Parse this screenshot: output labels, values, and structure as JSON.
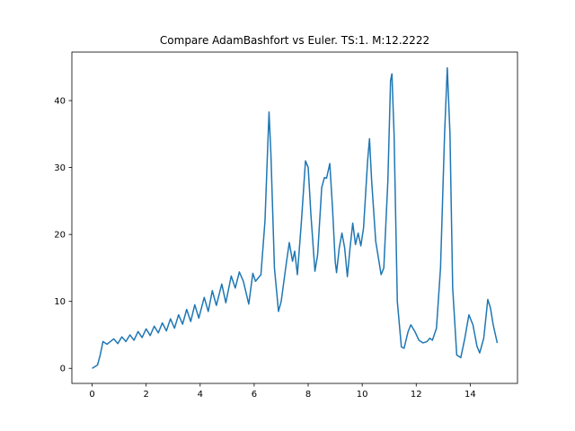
{
  "chart_data": {
    "type": "line",
    "title": "Compare AdamBashfort vs Euler. TS:1. M:12.2222",
    "x": [
      0,
      0.2,
      0.3,
      0.4,
      0.55,
      0.8,
      0.95,
      1.1,
      1.25,
      1.4,
      1.55,
      1.7,
      1.85,
      2.0,
      2.15,
      2.3,
      2.45,
      2.6,
      2.75,
      2.9,
      3.05,
      3.2,
      3.35,
      3.5,
      3.65,
      3.8,
      3.95,
      4.15,
      4.3,
      4.45,
      4.6,
      4.8,
      4.95,
      5.15,
      5.3,
      5.45,
      5.6,
      5.8,
      5.95,
      6.05,
      6.25,
      6.4,
      6.5,
      6.55,
      6.62,
      6.75,
      6.9,
      7.0,
      7.2,
      7.3,
      7.42,
      7.5,
      7.6,
      7.75,
      7.9,
      8.0,
      8.1,
      8.25,
      8.35,
      8.5,
      8.6,
      8.68,
      8.8,
      8.9,
      9.0,
      9.05,
      9.15,
      9.25,
      9.35,
      9.45,
      9.55,
      9.65,
      9.75,
      9.85,
      9.95,
      10.05,
      10.2,
      10.27,
      10.35,
      10.5,
      10.7,
      10.8,
      10.95,
      11.05,
      11.1,
      11.18,
      11.3,
      11.45,
      11.55,
      11.7,
      11.8,
      11.95,
      12.1,
      12.25,
      12.4,
      12.5,
      12.6,
      12.75,
      12.9,
      13.05,
      13.15,
      13.25,
      13.35,
      13.5,
      13.65,
      13.8,
      13.95,
      14.1,
      14.25,
      14.35,
      14.5,
      14.65,
      14.75,
      14.85,
      15.0
    ],
    "series": [
      {
        "color": "#1f77b4",
        "values": [
          0,
          0.5,
          2,
          4,
          3.6,
          4.4,
          3.7,
          4.7,
          4.0,
          5.0,
          4.2,
          5.5,
          4.6,
          5.9,
          4.9,
          6.3,
          5.3,
          6.8,
          5.6,
          7.4,
          6.0,
          8.0,
          6.6,
          8.8,
          7.0,
          9.5,
          7.5,
          10.6,
          8.5,
          11.6,
          9.4,
          12.6,
          9.8,
          13.8,
          12.0,
          14.4,
          13.0,
          9.6,
          14.2,
          13.0,
          14,
          22,
          33,
          38.3,
          32,
          15,
          8.5,
          10,
          16,
          18.8,
          16,
          17.5,
          14,
          22,
          31,
          30,
          23,
          14.5,
          17,
          27,
          28.5,
          28.4,
          30.6,
          24,
          16,
          14.3,
          18,
          20.2,
          18,
          13.7,
          18,
          21.7,
          18.5,
          20.2,
          18.3,
          21,
          31,
          34.3,
          28,
          19,
          14,
          15,
          28,
          43,
          44,
          35,
          10,
          3.2,
          3.0,
          5.5,
          6.5,
          5.5,
          4.2,
          3.8,
          4.0,
          4.5,
          4.2,
          6,
          15,
          35,
          44.9,
          35,
          12,
          2,
          1.6,
          4.5,
          8,
          6.5,
          3.3,
          2.3,
          4.5,
          10.3,
          9,
          6.5,
          3.8
        ]
      }
    ],
    "xlim": [
      -0.75,
      15.75
    ],
    "ylim": [
      -2.25,
      47.25
    ],
    "xticks": [
      0,
      2,
      4,
      6,
      8,
      10,
      12,
      14
    ],
    "yticks": [
      0,
      10,
      20,
      30,
      40
    ]
  }
}
